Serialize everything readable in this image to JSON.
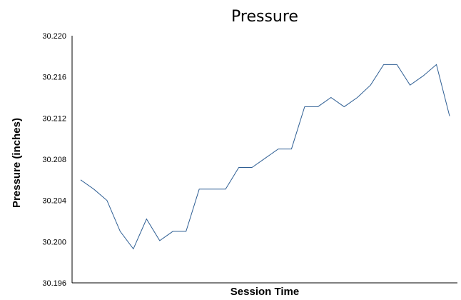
{
  "chart_data": {
    "type": "line",
    "title": "Pressure",
    "xlabel": "Session Time",
    "ylabel": "Pressure (inches)",
    "ylim": [
      30.196,
      30.22
    ],
    "yticks": [
      "30.196",
      "30.200",
      "30.204",
      "30.208",
      "30.212",
      "30.216",
      "30.220"
    ],
    "grid": false,
    "legend": "none",
    "series": [
      {
        "color": "#2f5f94",
        "values": [
          30.206,
          30.2051,
          30.204,
          30.201,
          30.1993,
          30.2022,
          30.2001,
          30.201,
          30.201,
          30.2051,
          30.2051,
          30.2051,
          30.2072,
          30.2072,
          30.2081,
          30.209,
          30.209,
          30.2131,
          30.2131,
          30.214,
          30.2131,
          30.214,
          30.2152,
          30.2172,
          30.2172,
          30.2152,
          30.2161,
          30.2172,
          30.2122
        ]
      }
    ]
  }
}
